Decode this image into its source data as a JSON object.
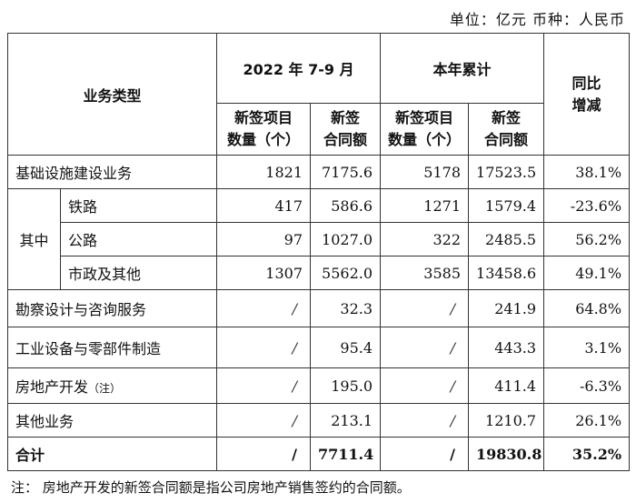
{
  "unit_line": "单位：亿元    币种：人民币",
  "header": {
    "business_type": "业务类型",
    "period": "2022 年 7-9 月",
    "ytd": "本年累计",
    "yoy_line1": "同比",
    "yoy_line2": "增减",
    "count_line1": "新签项目",
    "count_line2": "数量（个）",
    "amount_line1": "新签",
    "amount_line2": "合同额"
  },
  "group_label": "其中",
  "rows": [
    {
      "name": "基础设施建设业务",
      "q_count": "1821",
      "q_amount": "7175.6",
      "ytd_count": "5178",
      "ytd_amount": "17523.5",
      "yoy": "38.1%"
    },
    {
      "name": "铁路",
      "q_count": "417",
      "q_amount": "586.6",
      "ytd_count": "1271",
      "ytd_amount": "1579.4",
      "yoy": "-23.6%"
    },
    {
      "name": "公路",
      "q_count": "97",
      "q_amount": "1027.0",
      "ytd_count": "322",
      "ytd_amount": "2485.5",
      "yoy": "56.2%"
    },
    {
      "name": "市政及其他",
      "q_count": "1307",
      "q_amount": "5562.0",
      "ytd_count": "3585",
      "ytd_amount": "13458.6",
      "yoy": "49.1%"
    },
    {
      "name": "勘察设计与咨询服务",
      "q_count": "/",
      "q_amount": "32.3",
      "ytd_count": "/",
      "ytd_amount": "241.9",
      "yoy": "64.8%"
    },
    {
      "name": "工业设备与零部件制造",
      "q_count": "/",
      "q_amount": "95.4",
      "ytd_count": "/",
      "ytd_amount": "443.3",
      "yoy": "3.1%"
    },
    {
      "name": "房地产开发",
      "name_note": "（注）",
      "q_count": "/",
      "q_amount": "195.0",
      "ytd_count": "/",
      "ytd_amount": "411.4",
      "yoy": "-6.3%"
    },
    {
      "name": "其他业务",
      "q_count": "/",
      "q_amount": "213.1",
      "ytd_count": "/",
      "ytd_amount": "1210.7",
      "yoy": "26.1%"
    },
    {
      "name": "合计",
      "q_count": "/",
      "q_amount": "7711.4",
      "ytd_count": "/",
      "ytd_amount": "19830.8",
      "yoy": "35.2%"
    }
  ],
  "footnote": "注：  房地产开发的新签合同额是指公司房地产销售签约的合同额。"
}
